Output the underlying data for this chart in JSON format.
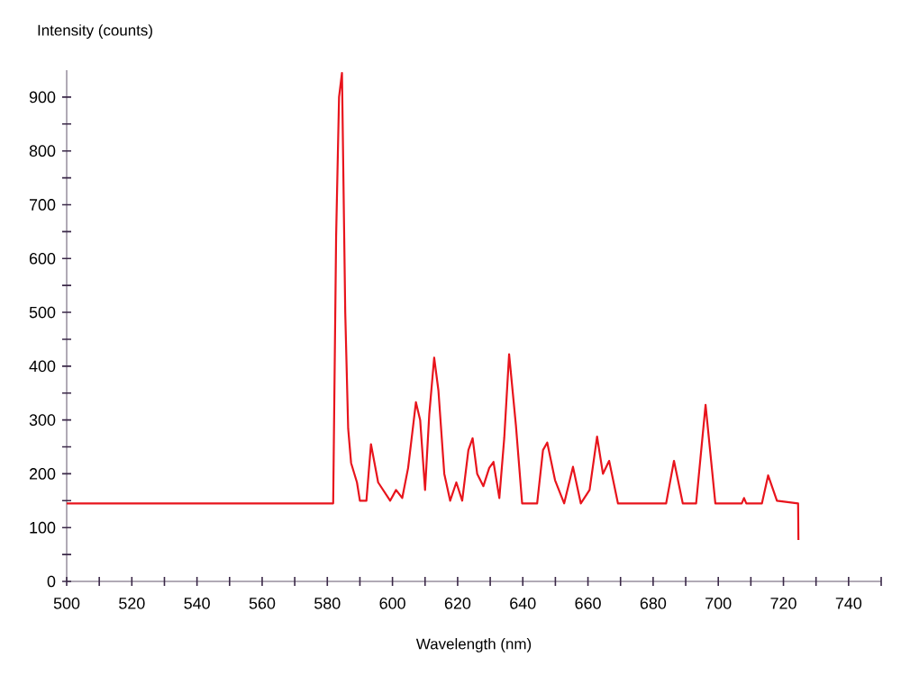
{
  "chart_data": {
    "type": "line",
    "xlabel": "Wavelength (nm)",
    "ylabel": "Intensity (counts)",
    "x": [
      500,
      540,
      581.8,
      582.7,
      583.6,
      584.5,
      585.5,
      586.4,
      587.3,
      589.1,
      590,
      592,
      593.4,
      595.6,
      599.3,
      601.1,
      603,
      604.8,
      607.2,
      608.5,
      610,
      611.3,
      612.8,
      614.1,
      615.9,
      617.7,
      619.6,
      621.4,
      623.3,
      624.6,
      626,
      627.9,
      629.7,
      631,
      632.8,
      634.3,
      635.8,
      637.9,
      639.8,
      644.4,
      646.2,
      647.5,
      649.9,
      652.7,
      655.4,
      657.8,
      660.5,
      662.8,
      664.6,
      666.5,
      669.2,
      684,
      686.4,
      689.1,
      693.2,
      696.1,
      699.1,
      707.2,
      707.9,
      708.6,
      713.4,
      715.3,
      718,
      724.5,
      724.6
    ],
    "series": [
      {
        "color": "#e8141c",
        "values": [
          145,
          145,
          145,
          640,
          900,
          945,
          500,
          284,
          220,
          184,
          150,
          150,
          255,
          184,
          150,
          170,
          155,
          211,
          333,
          300,
          170,
          311,
          416,
          355,
          200,
          150,
          184,
          150,
          244,
          266,
          200,
          177,
          211,
          222,
          155,
          266,
          422,
          289,
          145,
          145,
          244,
          258,
          188,
          145,
          213,
          145,
          170,
          269,
          200,
          224,
          145,
          145,
          224,
          145,
          145,
          328,
          145,
          145,
          155,
          145,
          145,
          197,
          150,
          145,
          77
        ]
      }
    ],
    "xlim": [
      500,
      750
    ],
    "ylim": [
      0,
      950
    ],
    "xticks": [
      500,
      {
        "value": 510,
        "label": null
      },
      520,
      {
        "value": 530,
        "label": null
      },
      540,
      {
        "value": 550,
        "label": null
      },
      560,
      {
        "value": 570,
        "label": null
      },
      580,
      {
        "value": 590,
        "label": null
      },
      600,
      {
        "value": 610,
        "label": null
      },
      620,
      {
        "value": 630,
        "label": null
      },
      640,
      {
        "value": 650,
        "label": null
      },
      660,
      {
        "value": 670,
        "label": null
      },
      680,
      {
        "value": 690,
        "label": null
      },
      700,
      {
        "value": 710,
        "label": null
      },
      720,
      {
        "value": 730,
        "label": null
      },
      740,
      {
        "value": 750,
        "label": null
      }
    ],
    "yticks": [
      0,
      {
        "value": 50,
        "label": null
      },
      100,
      {
        "value": 150,
        "label": null
      },
      200,
      {
        "value": 250,
        "label": null
      },
      300,
      {
        "value": 350,
        "label": null
      },
      400,
      {
        "value": 450,
        "label": null
      },
      500,
      {
        "value": 550,
        "label": null
      },
      600,
      {
        "value": 650,
        "label": null
      },
      700,
      {
        "value": 750,
        "label": null
      },
      800,
      {
        "value": 850,
        "label": null
      },
      900
    ],
    "marker": "none",
    "line_style": "solid"
  }
}
